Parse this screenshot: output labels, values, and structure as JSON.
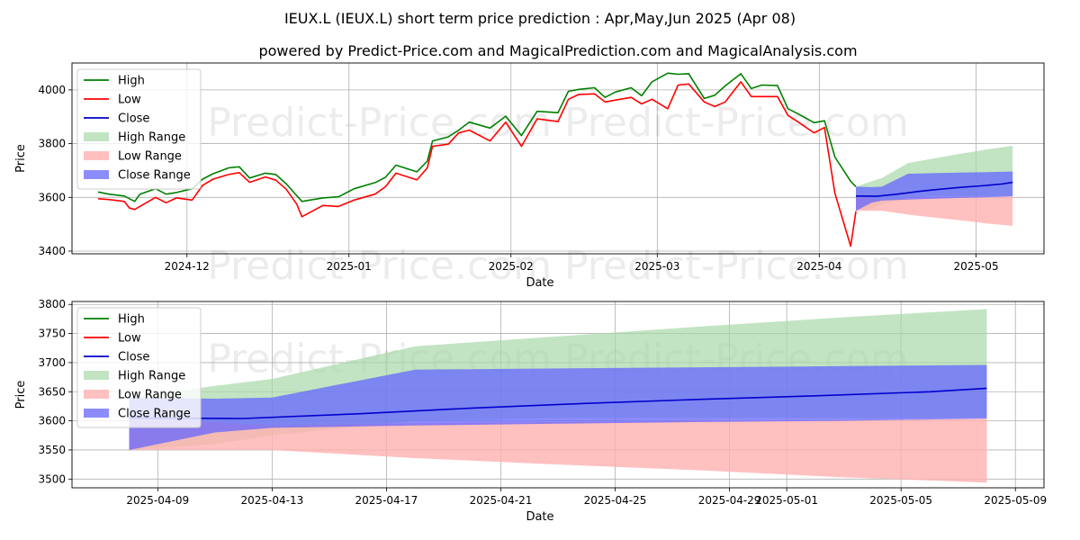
{
  "title": "IEUX.L (IEUX.L) short term price prediction : Apr,May,Jun 2025 (Apr 08)",
  "subtitle": "powered by Predict-Price.com and MagicalPrediction.com and MagicalAnalysis.com",
  "watermark": "Predict-Price.com",
  "colors": {
    "high": "#008000",
    "low": "#ff0000",
    "close": "#0000cc",
    "high_range": "#a8d8a8",
    "low_range": "#ffb0b0",
    "close_range": "#6666ff",
    "grid": "#b0b0b0"
  },
  "chart_data": [
    {
      "type": "line",
      "xlabel": "Date",
      "ylabel": "Price",
      "x_ticks": [
        "2024-12",
        "2025-01",
        "2025-02",
        "2025-03",
        "2025-04",
        "2025-05"
      ],
      "y_ticks": [
        3400,
        3600,
        3800,
        4000
      ],
      "ylim": [
        3390,
        4100
      ],
      "grid": true,
      "legend": "upper-left",
      "legend_entries": [
        "High",
        "Low",
        "Close",
        "High Range",
        "Low Range",
        "Close Range"
      ],
      "series": [
        {
          "name": "High",
          "points": [
            [
              "2024-11-14",
              3620
            ],
            [
              "2024-11-16",
              3612
            ],
            [
              "2024-11-19",
              3605
            ],
            [
              "2024-11-21",
              3585
            ],
            [
              "2024-11-22",
              3612
            ],
            [
              "2024-11-25",
              3632
            ],
            [
              "2024-11-27",
              3612
            ],
            [
              "2024-11-29",
              3618
            ],
            [
              "2024-12-02",
              3632
            ],
            [
              "2024-12-04",
              3668
            ],
            [
              "2024-12-06",
              3688
            ],
            [
              "2024-12-09",
              3710
            ],
            [
              "2024-12-11",
              3714
            ],
            [
              "2024-12-13",
              3672
            ],
            [
              "2024-12-16",
              3690
            ],
            [
              "2024-12-18",
              3685
            ],
            [
              "2024-12-20",
              3650
            ],
            [
              "2024-12-23",
              3585
            ],
            [
              "2024-12-27",
              3598
            ],
            [
              "2024-12-30",
              3602
            ],
            [
              "2025-01-02",
              3632
            ],
            [
              "2025-01-06",
              3655
            ],
            [
              "2025-01-08",
              3675
            ],
            [
              "2025-01-10",
              3720
            ],
            [
              "2025-01-14",
              3695
            ],
            [
              "2025-01-16",
              3735
            ],
            [
              "2025-01-17",
              3810
            ],
            [
              "2025-01-20",
              3825
            ],
            [
              "2025-01-22",
              3850
            ],
            [
              "2025-01-24",
              3880
            ],
            [
              "2025-01-28",
              3858
            ],
            [
              "2025-01-31",
              3902
            ],
            [
              "2025-02-03",
              3830
            ],
            [
              "2025-02-06",
              3920
            ],
            [
              "2025-02-10",
              3915
            ],
            [
              "2025-02-12",
              3995
            ],
            [
              "2025-02-14",
              4002
            ],
            [
              "2025-02-17",
              4008
            ],
            [
              "2025-02-19",
              3972
            ],
            [
              "2025-02-21",
              3992
            ],
            [
              "2025-02-24",
              4008
            ],
            [
              "2025-02-26",
              3978
            ],
            [
              "2025-02-28",
              4030
            ],
            [
              "2025-03-03",
              4062
            ],
            [
              "2025-03-05",
              4058
            ],
            [
              "2025-03-07",
              4060
            ],
            [
              "2025-03-10",
              3968
            ],
            [
              "2025-03-12",
              3980
            ],
            [
              "2025-03-14",
              4015
            ],
            [
              "2025-03-17",
              4060
            ],
            [
              "2025-03-19",
              4005
            ],
            [
              "2025-03-21",
              4018
            ],
            [
              "2025-03-24",
              4016
            ],
            [
              "2025-03-26",
              3930
            ],
            [
              "2025-03-28",
              3910
            ],
            [
              "2025-03-31",
              3878
            ],
            [
              "2025-04-02",
              3885
            ],
            [
              "2025-04-04",
              3750
            ],
            [
              "2025-04-07",
              3660
            ],
            [
              "2025-04-08",
              3640
            ]
          ]
        },
        {
          "name": "Low",
          "points": [
            [
              "2024-11-14",
              3595
            ],
            [
              "2024-11-16",
              3592
            ],
            [
              "2024-11-19",
              3585
            ],
            [
              "2024-11-20",
              3560
            ],
            [
              "2024-11-21",
              3555
            ],
            [
              "2024-11-25",
              3600
            ],
            [
              "2024-11-27",
              3580
            ],
            [
              "2024-11-29",
              3598
            ],
            [
              "2024-12-02",
              3590
            ],
            [
              "2024-12-04",
              3645
            ],
            [
              "2024-12-06",
              3668
            ],
            [
              "2024-12-09",
              3685
            ],
            [
              "2024-12-11",
              3692
            ],
            [
              "2024-12-13",
              3656
            ],
            [
              "2024-12-16",
              3676
            ],
            [
              "2024-12-18",
              3664
            ],
            [
              "2024-12-20",
              3630
            ],
            [
              "2024-12-22",
              3575
            ],
            [
              "2024-12-23",
              3528
            ],
            [
              "2024-12-27",
              3570
            ],
            [
              "2024-12-30",
              3566
            ],
            [
              "2025-01-02",
              3590
            ],
            [
              "2025-01-06",
              3612
            ],
            [
              "2025-01-08",
              3640
            ],
            [
              "2025-01-10",
              3690
            ],
            [
              "2025-01-14",
              3665
            ],
            [
              "2025-01-16",
              3710
            ],
            [
              "2025-01-17",
              3790
            ],
            [
              "2025-01-20",
              3798
            ],
            [
              "2025-01-22",
              3840
            ],
            [
              "2025-01-24",
              3850
            ],
            [
              "2025-01-28",
              3810
            ],
            [
              "2025-01-31",
              3880
            ],
            [
              "2025-02-03",
              3790
            ],
            [
              "2025-02-06",
              3892
            ],
            [
              "2025-02-10",
              3882
            ],
            [
              "2025-02-12",
              3965
            ],
            [
              "2025-02-14",
              3983
            ],
            [
              "2025-02-17",
              3985
            ],
            [
              "2025-02-19",
              3955
            ],
            [
              "2025-02-21",
              3962
            ],
            [
              "2025-02-24",
              3972
            ],
            [
              "2025-02-26",
              3948
            ],
            [
              "2025-02-28",
              3965
            ],
            [
              "2025-03-03",
              3930
            ],
            [
              "2025-03-05",
              4018
            ],
            [
              "2025-03-07",
              4022
            ],
            [
              "2025-03-10",
              3955
            ],
            [
              "2025-03-12",
              3938
            ],
            [
              "2025-03-14",
              3955
            ],
            [
              "2025-03-17",
              4030
            ],
            [
              "2025-03-19",
              3975
            ],
            [
              "2025-03-21",
              3975
            ],
            [
              "2025-03-24",
              3975
            ],
            [
              "2025-03-26",
              3905
            ],
            [
              "2025-03-28",
              3880
            ],
            [
              "2025-03-31",
              3840
            ],
            [
              "2025-04-02",
              3860
            ],
            [
              "2025-04-04",
              3615
            ],
            [
              "2025-04-07",
              3418
            ],
            [
              "2025-04-08",
              3548
            ]
          ]
        },
        {
          "name": "Close",
          "points": [
            [
              "2025-04-08",
              3605
            ],
            [
              "2025-04-12",
              3604
            ],
            [
              "2025-04-16",
              3612
            ],
            [
              "2025-04-20",
              3622
            ],
            [
              "2025-04-24",
              3630
            ],
            [
              "2025-04-28",
              3637
            ],
            [
              "2025-05-02",
              3643
            ],
            [
              "2025-05-06",
              3650
            ],
            [
              "2025-05-08",
              3656
            ]
          ]
        },
        {
          "name": "High Range",
          "band": true,
          "points": [
            [
              "2025-04-08",
              3550,
              3640
            ],
            [
              "2025-04-11",
              3560,
              3660
            ],
            [
              "2025-04-13",
              3575,
              3672
            ],
            [
              "2025-04-18",
              3600,
              3728
            ],
            [
              "2025-04-23",
              3605,
              3745
            ],
            [
              "2025-04-28",
              3605,
              3762
            ],
            [
              "2025-05-03",
              3605,
              3778
            ],
            [
              "2025-05-08",
              3605,
              3792
            ]
          ]
        },
        {
          "name": "Low Range",
          "band": true,
          "points": [
            [
              "2025-04-08",
              3550,
              3605
            ],
            [
              "2025-04-13",
              3550,
              3592
            ],
            [
              "2025-04-18",
              3536,
              3596
            ],
            [
              "2025-04-23",
              3525,
              3598
            ],
            [
              "2025-04-28",
              3515,
              3600
            ],
            [
              "2025-05-03",
              3503,
              3601
            ],
            [
              "2025-05-08",
              3494,
              3604
            ]
          ]
        },
        {
          "name": "Close Range",
          "band": true,
          "points": [
            [
              "2025-04-08",
              3550,
              3640
            ],
            [
              "2025-04-11",
              3580,
              3638
            ],
            [
              "2025-04-13",
              3588,
              3640
            ],
            [
              "2025-04-18",
              3592,
              3688
            ],
            [
              "2025-04-23",
              3595,
              3690
            ],
            [
              "2025-04-28",
              3598,
              3692
            ],
            [
              "2025-05-03",
              3600,
              3694
            ],
            [
              "2025-05-08",
              3604,
              3696
            ]
          ]
        }
      ]
    },
    {
      "type": "line",
      "xlabel": "Date",
      "ylabel": "Price",
      "x_ticks": [
        "2025-04-09",
        "2025-04-13",
        "2025-04-17",
        "2025-04-21",
        "2025-04-25",
        "2025-04-29",
        "2025-05-01",
        "2025-05-05",
        "2025-05-09"
      ],
      "y_ticks": [
        3500,
        3550,
        3600,
        3650,
        3700,
        3750,
        3800
      ],
      "ylim": [
        3485,
        3805
      ],
      "grid": true,
      "legend": "upper-left",
      "legend_entries": [
        "High",
        "Low",
        "Close",
        "High Range",
        "Low Range",
        "Close Range"
      ],
      "series": [
        {
          "name": "Close",
          "points": [
            [
              "2025-04-08",
              3605
            ],
            [
              "2025-04-12",
              3604
            ],
            [
              "2025-04-16",
              3612
            ],
            [
              "2025-04-20",
              3622
            ],
            [
              "2025-04-24",
              3630
            ],
            [
              "2025-04-28",
              3637
            ],
            [
              "2025-05-02",
              3643
            ],
            [
              "2025-05-06",
              3650
            ],
            [
              "2025-05-08",
              3656
            ]
          ]
        },
        {
          "name": "High Range",
          "band": true,
          "points": [
            [
              "2025-04-08",
              3550,
              3640
            ],
            [
              "2025-04-11",
              3560,
              3660
            ],
            [
              "2025-04-13",
              3575,
              3672
            ],
            [
              "2025-04-18",
              3600,
              3728
            ],
            [
              "2025-04-23",
              3605,
              3745
            ],
            [
              "2025-04-28",
              3605,
              3762
            ],
            [
              "2025-05-03",
              3605,
              3778
            ],
            [
              "2025-05-08",
              3605,
              3792
            ]
          ]
        },
        {
          "name": "Low Range",
          "band": true,
          "points": [
            [
              "2025-04-08",
              3550,
              3605
            ],
            [
              "2025-04-13",
              3550,
              3592
            ],
            [
              "2025-04-18",
              3536,
              3596
            ],
            [
              "2025-04-23",
              3525,
              3598
            ],
            [
              "2025-04-28",
              3515,
              3600
            ],
            [
              "2025-05-03",
              3503,
              3601
            ],
            [
              "2025-05-08",
              3494,
              3604
            ]
          ]
        },
        {
          "name": "Close Range",
          "band": true,
          "points": [
            [
              "2025-04-08",
              3550,
              3640
            ],
            [
              "2025-04-11",
              3580,
              3638
            ],
            [
              "2025-04-13",
              3588,
              3640
            ],
            [
              "2025-04-18",
              3592,
              3688
            ],
            [
              "2025-04-23",
              3595,
              3690
            ],
            [
              "2025-04-28",
              3598,
              3692
            ],
            [
              "2025-05-03",
              3600,
              3694
            ],
            [
              "2025-05-08",
              3604,
              3696
            ]
          ]
        }
      ]
    }
  ]
}
